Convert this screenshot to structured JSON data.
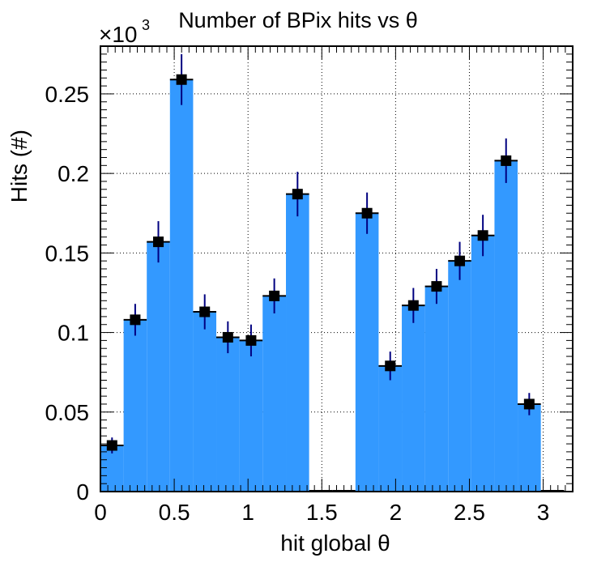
{
  "chart_data": {
    "type": "bar",
    "title": "Number of BPix hits vs θ",
    "xlabel": "hit global θ",
    "ylabel": "Hits (#)",
    "y_multiplier_label": "×10",
    "y_multiplier_exponent": "3",
    "xlim": [
      0,
      3.2
    ],
    "ylim": [
      0,
      0.28
    ],
    "grid": true,
    "x_tick_labels": [
      "0",
      "0.5",
      "1",
      "1.5",
      "2",
      "2.5",
      "3"
    ],
    "y_tick_labels": [
      "0",
      "0.05",
      "0.1",
      "0.15",
      "0.2",
      "0.25"
    ],
    "bin_edges": [
      0,
      0.157,
      0.314,
      0.471,
      0.628,
      0.785,
      0.942,
      1.099,
      1.257,
      1.414,
      1.571,
      1.728,
      1.885,
      2.042,
      2.199,
      2.356,
      2.513,
      2.67,
      2.827,
      2.984,
      3.142
    ],
    "series": [
      {
        "values": [
          0.029,
          0.108,
          0.157,
          0.259,
          0.113,
          0.097,
          0.095,
          0.123,
          0.187,
          0,
          0,
          0.175,
          0.079,
          0.117,
          0.129,
          0.145,
          0.161,
          0.208,
          0.055,
          0
        ],
        "errors": [
          0.005,
          0.01,
          0.013,
          0.016,
          0.011,
          0.01,
          0.01,
          0.011,
          0.014,
          0,
          0,
          0.013,
          0.009,
          0.011,
          0.011,
          0.012,
          0.013,
          0.014,
          0.007,
          0
        ],
        "fill_color": "#3399ff",
        "marker_color": "#000000",
        "error_color": "#000080"
      }
    ]
  }
}
